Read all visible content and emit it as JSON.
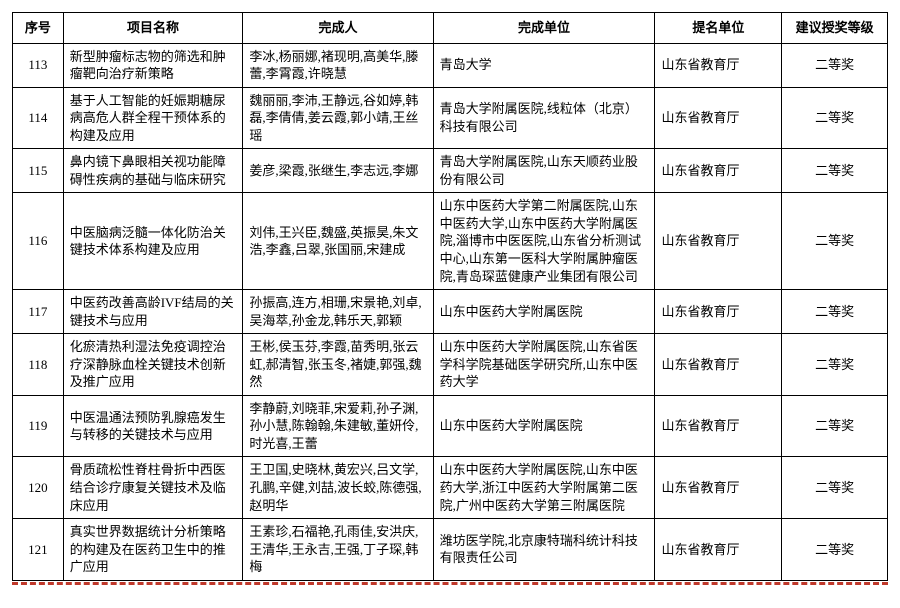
{
  "table": {
    "columns": [
      "序号",
      "项目名称",
      "完成人",
      "完成单位",
      "提名单位",
      "建议授奖等级"
    ],
    "rows": [
      {
        "idx": "113",
        "name": "新型肿瘤标志物的筛选和肿瘤靶向治疗新策略",
        "people": "李冰,杨丽娜,褚现明,高美华,滕蕾,李霄霞,许晓慧",
        "unit": "青岛大学",
        "nom": "山东省教育厅",
        "grade": "二等奖"
      },
      {
        "idx": "114",
        "name": "基于人工智能的妊娠期糖尿病高危人群全程干预体系的构建及应用",
        "people": "魏丽丽,李沛,王静远,谷如婷,韩磊,李倩倩,姜云霞,郭小靖,王丝瑶",
        "unit": "青岛大学附属医院,线粒体（北京）科技有限公司",
        "nom": "山东省教育厅",
        "grade": "二等奖"
      },
      {
        "idx": "115",
        "name": "鼻内镜下鼻眼相关视功能障碍性疾病的基础与临床研究",
        "people": "姜彦,梁霞,张继生,李志远,李娜",
        "unit": "青岛大学附属医院,山东天顺药业股份有限公司",
        "nom": "山东省教育厅",
        "grade": "二等奖"
      },
      {
        "idx": "116",
        "name": "中医脑病泛髓一体化防治关键技术体系构建及应用",
        "people": "刘伟,王兴臣,魏盛,英振昊,朱文浩,李鑫,吕翠,张国丽,宋建成",
        "unit": "山东中医药大学第二附属医院,山东中医药大学,山东中医药大学附属医院,淄博市中医医院,山东省分析测试中心,山东第一医科大学附属肿瘤医院,青岛琛蓝健康产业集团有限公司",
        "nom": "山东省教育厅",
        "grade": "二等奖"
      },
      {
        "idx": "117",
        "name": "中医药改善高龄IVF结局的关键技术与应用",
        "people": "孙振高,连方,相珊,宋景艳,刘卓,吴海萃,孙金龙,韩乐天,郭颖",
        "unit": "山东中医药大学附属医院",
        "nom": "山东省教育厅",
        "grade": "二等奖"
      },
      {
        "idx": "118",
        "name": "化瘀清热利湿法免疫调控治疗深静脉血栓关键技术创新及推广应用",
        "people": "王彬,侯玉芬,李霞,苗秀明,张云虹,郝清智,张玉冬,褚婕,郭强,魏然",
        "unit": "山东中医药大学附属医院,山东省医学科学院基础医学研究所,山东中医药大学",
        "nom": "山东省教育厅",
        "grade": "二等奖"
      },
      {
        "idx": "119",
        "name": "中医温通法预防乳腺癌发生与转移的关键技术与应用",
        "people": "李静蔚,刘晓菲,宋爱莉,孙子渊,孙小慧,陈翰翰,朱建敏,董妍伶,时光喜,王蕾",
        "unit": "山东中医药大学附属医院",
        "nom": "山东省教育厅",
        "grade": "二等奖"
      },
      {
        "idx": "120",
        "name": "骨质疏松性脊柱骨折中西医结合诊疗康复关键技术及临床应用",
        "people": "王卫国,史晓林,黄宏兴,吕文学,孔鹏,辛健,刘喆,波长蛟,陈德强,赵明华",
        "unit": "山东中医药大学附属医院,山东中医药大学,浙江中医药大学附属第二医院,广州中医药大学第三附属医院",
        "nom": "山东省教育厅",
        "grade": "二等奖"
      },
      {
        "idx": "121",
        "name": "真实世界数据统计分析策略的构建及在医药卫生中的推广应用",
        "people": "王素珍,石福艳,孔雨佳,安洪庆,王清华,王永吉,王强,丁子琛,韩梅",
        "unit": "潍坊医学院,北京康特瑞科统计科技有限责任公司",
        "nom": "山东省教育厅",
        "grade": "二等奖"
      }
    ]
  }
}
